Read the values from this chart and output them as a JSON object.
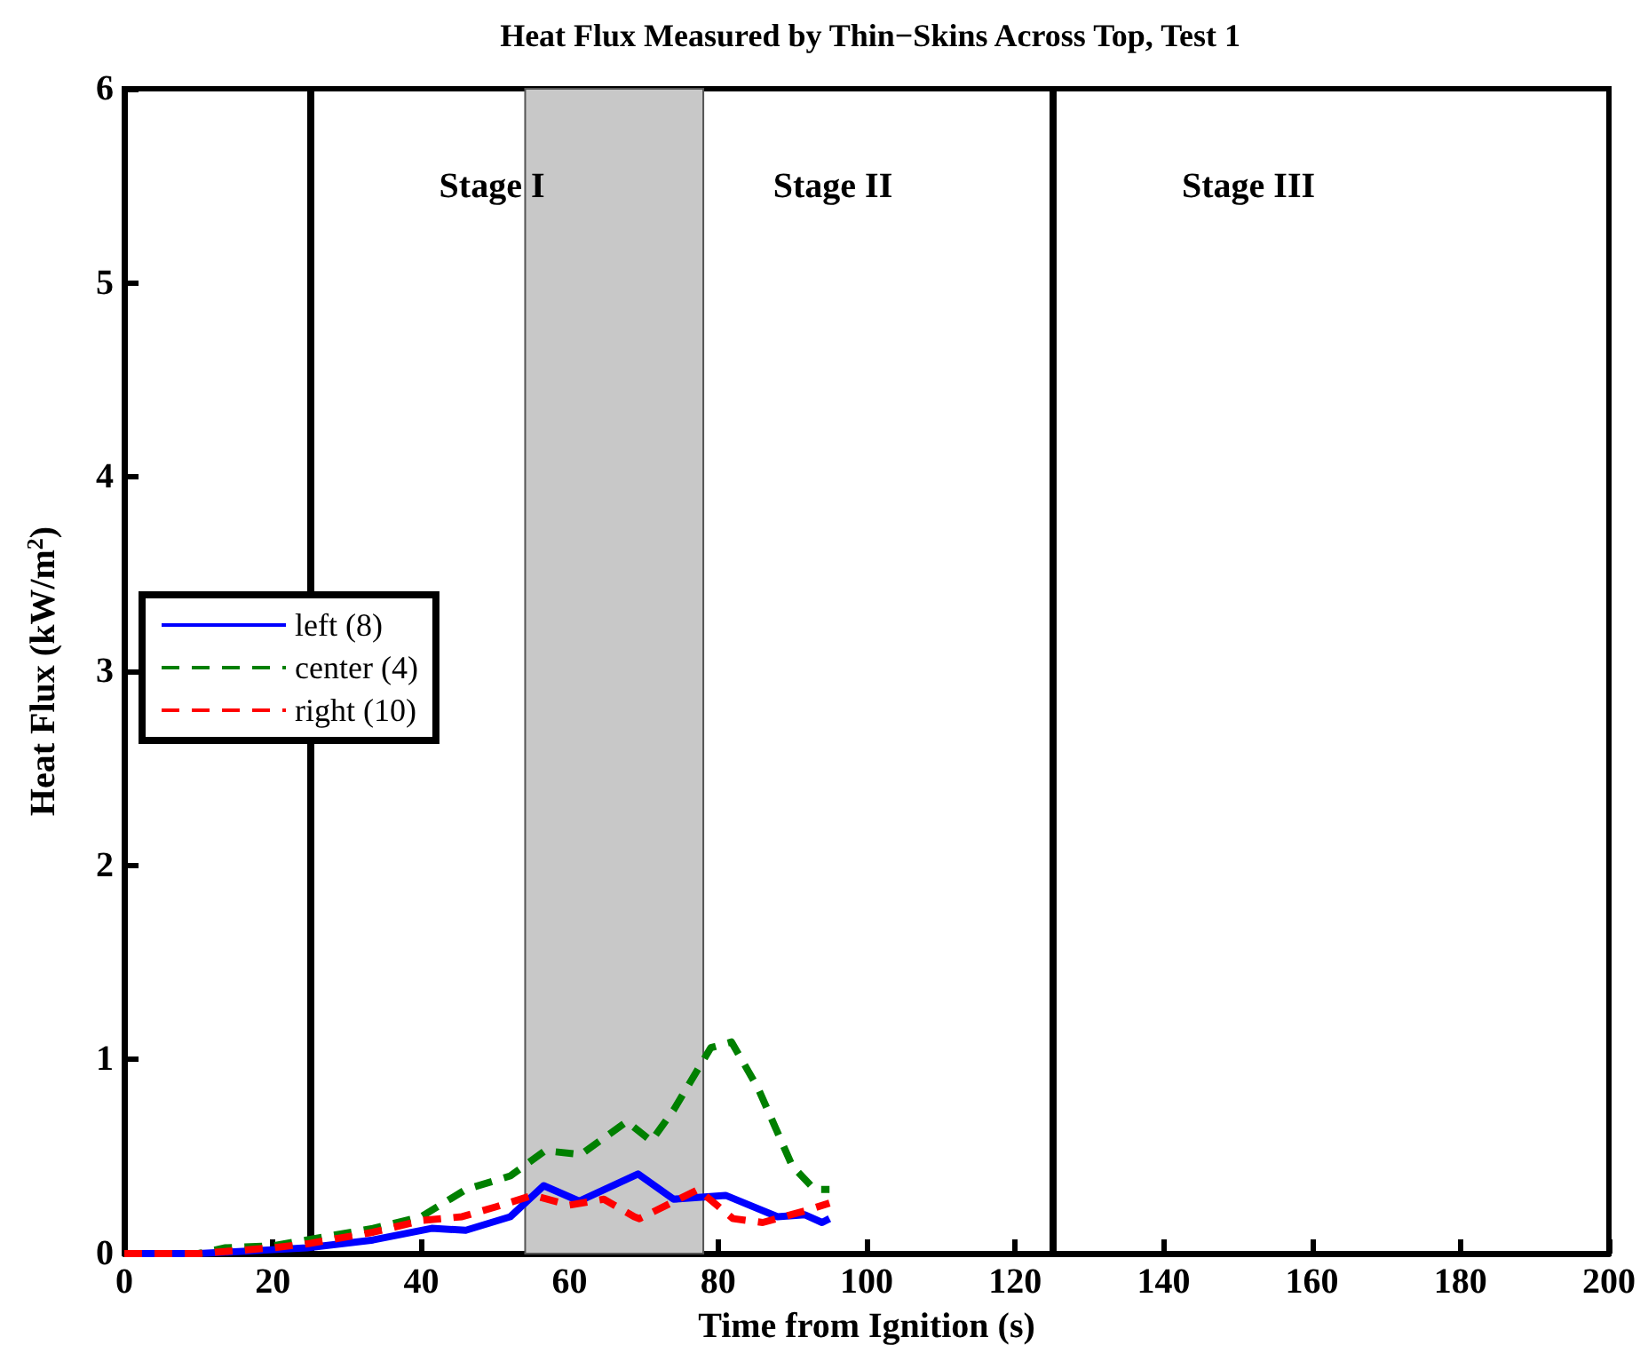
{
  "chart_data": {
    "type": "line",
    "title": "Heat Flux Measured by Thin−Skins Across Top, Test 1",
    "xlabel": "Time from Ignition (s)",
    "ylabel": "Heat Flux (kW/m$^{2}$)",
    "xlim": [
      0,
      200
    ],
    "xticks": [
      0,
      20,
      40,
      60,
      80,
      100,
      120,
      140,
      160,
      180,
      200
    ],
    "ylim": [
      0,
      6
    ],
    "yticks": [
      0,
      1,
      2,
      3,
      4,
      5,
      6
    ],
    "grid": false,
    "legend": "left",
    "marker": "none",
    "series": [
      {
        "name": "left (8)",
        "color": "#0000ff",
        "line_style": "solid",
        "x": [
          0,
          10,
          20,
          24.6,
          33.5,
          41.4,
          46,
          52,
          56.5,
          61.3,
          69.2,
          74,
          81,
          88,
          91.7,
          94,
          95
        ],
        "values": [
          0,
          0,
          0.02,
          0.03,
          0.07,
          0.13,
          0.12,
          0.19,
          0.35,
          0.27,
          0.41,
          0.28,
          0.3,
          0.19,
          0.2,
          0.16,
          0.18
        ]
      },
      {
        "name": "center (4)",
        "color": "#008000",
        "line_style": "dashed",
        "x": [
          0,
          10,
          13.6,
          20,
          24.6,
          33.5,
          40,
          46,
          52,
          56.7,
          61.5,
          67.7,
          71,
          74,
          79,
          81.8,
          85.4,
          90,
          93,
          95
        ],
        "values": [
          0,
          0,
          0.03,
          0.04,
          0.07,
          0.13,
          0.19,
          0.33,
          0.4,
          0.53,
          0.51,
          0.68,
          0.58,
          0.74,
          1.06,
          1.09,
          0.85,
          0.45,
          0.33,
          0.33
        ]
      },
      {
        "name": "right (10)",
        "color": "#ff0000",
        "line_style": "dashed",
        "x": [
          0,
          10,
          20,
          24.6,
          33.5,
          40,
          45.5,
          50,
          55,
          60,
          64.6,
          68.7,
          69.4,
          77.3,
          82,
          86,
          91.7,
          95
        ],
        "values": [
          0,
          0,
          0.03,
          0.05,
          0.11,
          0.17,
          0.19,
          0.24,
          0.3,
          0.25,
          0.28,
          0.19,
          0.18,
          0.33,
          0.18,
          0.16,
          0.22,
          0.26
        ]
      }
    ],
    "ref_lines": [
      {
        "axis": "x",
        "value": 25,
        "color": "#000000",
        "line_style": "solid"
      },
      {
        "axis": "x",
        "value": 125,
        "color": "#000000",
        "line_style": "solid"
      }
    ],
    "bands": [
      {
        "axis": "x",
        "from": 54,
        "to": 78,
        "color": "#c8c8c8"
      }
    ],
    "annotations": [
      "Stage I",
      "Stage II",
      "Stage III"
    ]
  }
}
